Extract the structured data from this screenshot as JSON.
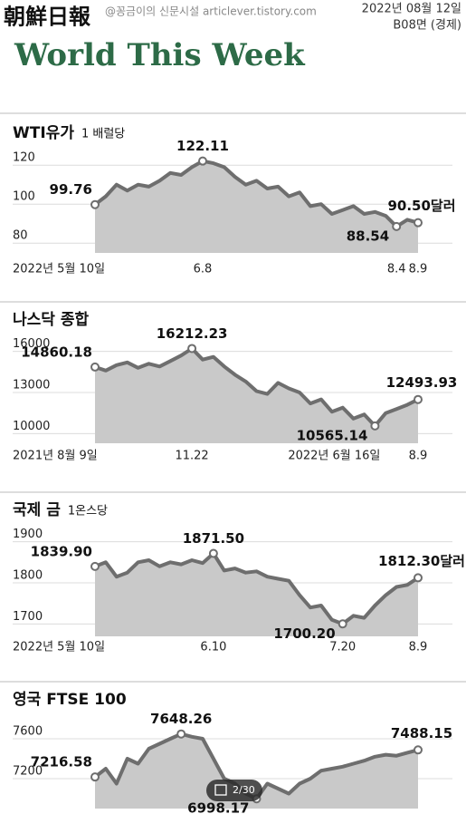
{
  "header": {
    "masthead": "朝鮮日報",
    "watermark": "@꽁금이의 신문시설 articlever.tistory.com",
    "date": "2022년 08월 12일",
    "page": "B08면 (경제)",
    "title": "World This Week"
  },
  "viewer": {
    "counter": "2/30"
  },
  "chart_data": [
    {
      "type": "line",
      "title": "WTI유가",
      "subtitle": "1 배럴당",
      "color": "#6e6e6e",
      "area_color": "#c9c9c9",
      "grid": true,
      "ylim": [
        75,
        128
      ],
      "yticks": [
        80,
        100,
        120
      ],
      "categories": [
        "2022년 5월 10일",
        null,
        null,
        null,
        null,
        null,
        null,
        null,
        null,
        null,
        "6.8",
        null,
        null,
        null,
        null,
        null,
        null,
        null,
        null,
        null,
        null,
        null,
        null,
        null,
        null,
        null,
        null,
        null,
        "8.4",
        null,
        "8.9"
      ],
      "values": [
        99.76,
        104,
        110,
        107,
        110,
        109,
        112,
        116,
        115,
        119,
        122.11,
        121,
        119,
        114,
        110,
        112,
        108,
        109,
        104,
        106,
        99,
        100,
        95,
        97,
        99,
        95,
        96,
        94,
        88.54,
        92,
        90.5
      ],
      "value_labels": [
        "99.76",
        null,
        null,
        null,
        null,
        null,
        null,
        null,
        null,
        null,
        "122.11",
        null,
        null,
        null,
        null,
        null,
        null,
        null,
        null,
        null,
        null,
        null,
        null,
        null,
        null,
        null,
        null,
        null,
        "88.54",
        null,
        "90.50달러"
      ]
    },
    {
      "type": "line",
      "title": "나스닥 종합",
      "color": "#6e6e6e",
      "area_color": "#c9c9c9",
      "grid": true,
      "ylim": [
        9300,
        17300
      ],
      "yticks": [
        10000,
        13000,
        16000
      ],
      "categories": [
        "2021년 8월 9일",
        null,
        null,
        null,
        null,
        null,
        null,
        null,
        null,
        "11.22",
        null,
        null,
        null,
        null,
        null,
        null,
        null,
        null,
        null,
        null,
        null,
        null,
        null,
        null,
        null,
        null,
        "2022년 6월 16일",
        null,
        null,
        null,
        "8.9"
      ],
      "values": [
        14860.18,
        14600,
        15000,
        15200,
        14800,
        15100,
        14900,
        15300,
        15700,
        16212.23,
        15400,
        15600,
        14900,
        14300,
        13800,
        13100,
        12900,
        13700,
        13300,
        13000,
        12200,
        12500,
        11600,
        11900,
        11100,
        11400,
        10565.14,
        11500,
        11800,
        12100,
        12493.93
      ],
      "value_labels": [
        "14860.18",
        null,
        null,
        null,
        null,
        null,
        null,
        null,
        null,
        "16212.23",
        null,
        null,
        null,
        null,
        null,
        null,
        null,
        null,
        null,
        null,
        null,
        null,
        null,
        null,
        null,
        null,
        "10565.14",
        null,
        null,
        null,
        "12493.93"
      ]
    },
    {
      "type": "line",
      "title": "국제 금",
      "subtitle": "1온스당",
      "color": "#6e6e6e",
      "area_color": "#c9c9c9",
      "grid": true,
      "ylim": [
        1670,
        1930
      ],
      "yticks": [
        1700,
        1800,
        1900
      ],
      "categories": [
        "2022년 5월 10일",
        null,
        null,
        null,
        null,
        null,
        null,
        null,
        null,
        null,
        null,
        "6.10",
        null,
        null,
        null,
        null,
        null,
        null,
        null,
        null,
        null,
        null,
        null,
        "7.20",
        null,
        null,
        null,
        null,
        null,
        null,
        "8.9"
      ],
      "values": [
        1839.9,
        1850,
        1815,
        1825,
        1850,
        1855,
        1840,
        1850,
        1845,
        1855,
        1848,
        1871.5,
        1830,
        1835,
        1825,
        1828,
        1815,
        1810,
        1805,
        1770,
        1740,
        1745,
        1710,
        1700.2,
        1720,
        1715,
        1745,
        1770,
        1790,
        1795,
        1812.3
      ],
      "value_labels": [
        "1839.90",
        null,
        null,
        null,
        null,
        null,
        null,
        null,
        null,
        null,
        null,
        "1871.50",
        null,
        null,
        null,
        null,
        null,
        null,
        null,
        null,
        null,
        null,
        null,
        "1700.20",
        null,
        null,
        null,
        null,
        null,
        null,
        "1812.30달러"
      ]
    },
    {
      "type": "line",
      "title": "영국 FTSE 100",
      "color": "#6e6e6e",
      "area_color": "#c9c9c9",
      "grid": true,
      "ylim": [
        6900,
        7800
      ],
      "yticks": [
        7200,
        7600
      ],
      "values": [
        7216.58,
        7300,
        7150,
        7400,
        7350,
        7500,
        7550,
        7600,
        7648.26,
        7620,
        7600,
        7400,
        7200,
        7150,
        7050,
        6998.17,
        7150,
        7100,
        7050,
        7150,
        7200,
        7280,
        7300,
        7320,
        7350,
        7380,
        7420,
        7440,
        7430,
        7460,
        7488.15
      ],
      "value_labels": [
        "7216.58",
        null,
        null,
        null,
        null,
        null,
        null,
        null,
        "7648.26",
        null,
        null,
        null,
        null,
        null,
        null,
        "6998.17",
        null,
        null,
        null,
        null,
        null,
        null,
        null,
        null,
        null,
        null,
        null,
        null,
        null,
        null,
        "7488.15"
      ]
    }
  ]
}
